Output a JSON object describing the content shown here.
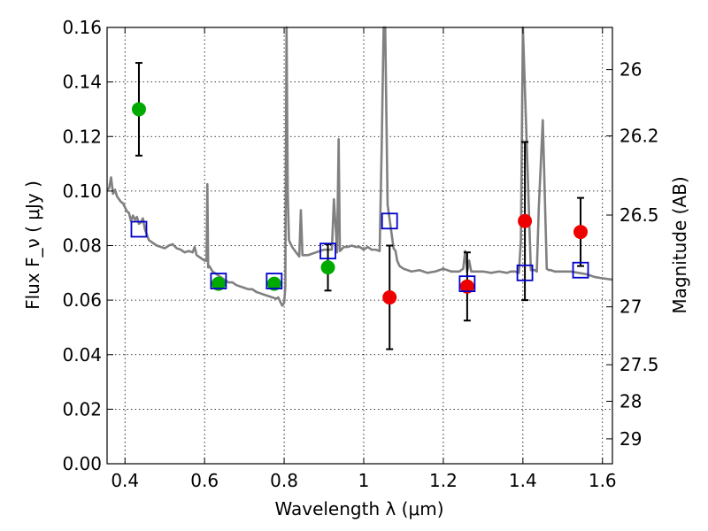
{
  "chart_data": {
    "type": "scatter",
    "xlabel": "Wavelength  λ (μm)",
    "ylabel": "Flux  F_ν  ( μJy )",
    "y2label": "Magnitude (AB)",
    "xlim": [
      0.355,
      1.625
    ],
    "ylim": [
      0.0,
      0.16
    ],
    "grid": true,
    "x_ticks": [
      0.4,
      0.6,
      0.8,
      1.0,
      1.2,
      1.4,
      1.6
    ],
    "x_tick_labels": [
      "0.4",
      "0.6",
      "0.8",
      "1",
      "1.2",
      "1.4",
      "1.6"
    ],
    "y_ticks": [
      0.0,
      0.02,
      0.04,
      0.06,
      0.08,
      0.1,
      0.12,
      0.14,
      0.16
    ],
    "y_tick_labels": [
      "0.00",
      "0.02",
      "0.04",
      "0.06",
      "0.08",
      "0.10",
      "0.12",
      "0.14",
      "0.16"
    ],
    "y2_ticks": [
      26,
      26.2,
      26.5,
      27,
      27.5,
      28,
      29
    ],
    "y2_tick_labels": [
      "26",
      "26.2",
      "26.5",
      "27",
      "27.5",
      "28",
      "29"
    ],
    "series": [
      {
        "marker": "circle",
        "color": "#00aa00",
        "points": [
          {
            "x": 0.435,
            "y": 0.13,
            "err": 0.017
          },
          {
            "x": 0.635,
            "y": 0.066,
            "err": 0.0
          },
          {
            "x": 0.775,
            "y": 0.066,
            "err": 0.0
          },
          {
            "x": 0.91,
            "y": 0.072,
            "err": 0.0085
          }
        ]
      },
      {
        "marker": "circle",
        "color": "#ee0000",
        "points": [
          {
            "x": 1.065,
            "y": 0.061,
            "err": 0.019
          },
          {
            "x": 1.26,
            "y": 0.065,
            "err": 0.0125
          },
          {
            "x": 1.405,
            "y": 0.089,
            "err": 0.029
          },
          {
            "x": 1.545,
            "y": 0.085,
            "err": 0.0125
          }
        ]
      },
      {
        "marker": "square",
        "color": "#0000cc",
        "points": [
          {
            "x": 0.435,
            "y": 0.086
          },
          {
            "x": 0.635,
            "y": 0.067
          },
          {
            "x": 0.775,
            "y": 0.067
          },
          {
            "x": 0.91,
            "y": 0.078
          },
          {
            "x": 1.065,
            "y": 0.089
          },
          {
            "x": 1.26,
            "y": 0.066
          },
          {
            "x": 1.405,
            "y": 0.07
          },
          {
            "x": 1.545,
            "y": 0.071
          }
        ]
      }
    ],
    "model_spectrum": {
      "color": "#808080",
      "x": [
        0.355,
        0.36,
        0.365,
        0.37,
        0.375,
        0.38,
        0.385,
        0.39,
        0.395,
        0.4,
        0.405,
        0.41,
        0.415,
        0.42,
        0.425,
        0.43,
        0.435,
        0.44,
        0.445,
        0.45,
        0.455,
        0.46,
        0.47,
        0.48,
        0.49,
        0.5,
        0.51,
        0.52,
        0.53,
        0.54,
        0.55,
        0.56,
        0.57,
        0.575,
        0.58,
        0.59,
        0.6,
        0.605,
        0.607,
        0.609,
        0.612,
        0.62,
        0.63,
        0.64,
        0.65,
        0.66,
        0.67,
        0.68,
        0.69,
        0.7,
        0.71,
        0.72,
        0.73,
        0.74,
        0.75,
        0.76,
        0.77,
        0.78,
        0.785,
        0.79,
        0.795,
        0.8,
        0.803,
        0.806,
        0.809,
        0.812,
        0.82,
        0.83,
        0.838,
        0.842,
        0.846,
        0.85,
        0.86,
        0.87,
        0.88,
        0.89,
        0.9,
        0.91,
        0.92,
        0.925,
        0.93,
        0.933,
        0.937,
        0.94,
        0.95,
        0.96,
        0.97,
        0.98,
        0.99,
        1.0,
        1.01,
        1.02,
        1.03,
        1.04,
        1.045,
        1.05,
        1.054,
        1.06,
        1.075,
        1.08,
        1.084,
        1.09,
        1.1,
        1.12,
        1.14,
        1.16,
        1.18,
        1.2,
        1.22,
        1.24,
        1.25,
        1.255,
        1.26,
        1.265,
        1.27,
        1.28,
        1.3,
        1.32,
        1.34,
        1.36,
        1.37,
        1.38,
        1.39,
        1.395,
        1.4,
        1.42,
        1.43,
        1.435,
        1.44,
        1.45,
        1.46,
        1.465,
        1.47,
        1.48,
        1.5,
        1.52,
        1.54,
        1.56,
        1.58,
        1.6,
        1.625
      ],
      "y": [
        0.1005,
        0.101,
        0.105,
        0.099,
        0.1005,
        0.098,
        0.097,
        0.096,
        0.0955,
        0.094,
        0.0925,
        0.092,
        0.089,
        0.091,
        0.0895,
        0.0905,
        0.088,
        0.0885,
        0.09,
        0.086,
        0.084,
        0.082,
        0.081,
        0.08,
        0.0795,
        0.079,
        0.08,
        0.0805,
        0.079,
        0.0785,
        0.0775,
        0.078,
        0.0775,
        0.0795,
        0.0765,
        0.0755,
        0.0745,
        0.0745,
        0.1025,
        0.072,
        0.0725,
        0.0705,
        0.0695,
        0.0685,
        0.0675,
        0.0665,
        0.0665,
        0.0655,
        0.065,
        0.0645,
        0.064,
        0.064,
        0.063,
        0.0625,
        0.062,
        0.0615,
        0.061,
        0.0605,
        0.061,
        0.0595,
        0.058,
        0.059,
        0.065,
        0.162,
        0.1,
        0.082,
        0.0795,
        0.0775,
        0.076,
        0.093,
        0.0765,
        0.0765,
        0.0765,
        0.077,
        0.0775,
        0.078,
        0.0785,
        0.0785,
        0.0785,
        0.097,
        0.0855,
        0.0775,
        0.119,
        0.078,
        0.0795,
        0.0795,
        0.08,
        0.0795,
        0.0795,
        0.0785,
        0.0795,
        0.0785,
        0.0785,
        0.078,
        0.115,
        0.162,
        0.162,
        0.095,
        0.079,
        0.078,
        0.0745,
        0.0725,
        0.0715,
        0.0705,
        0.071,
        0.07,
        0.0705,
        0.0715,
        0.0705,
        0.0705,
        0.0715,
        0.078,
        0.0705,
        0.0745,
        0.0705,
        0.0705,
        0.0705,
        0.07,
        0.0705,
        0.07,
        0.0705,
        0.0705,
        0.07,
        0.082,
        0.162,
        0.071,
        0.071,
        0.0705,
        0.094,
        0.126,
        0.0715,
        0.071,
        0.071,
        0.0705,
        0.0705,
        0.0705,
        0.07,
        0.0695,
        0.0685,
        0.068,
        0.0675
      ]
    }
  }
}
